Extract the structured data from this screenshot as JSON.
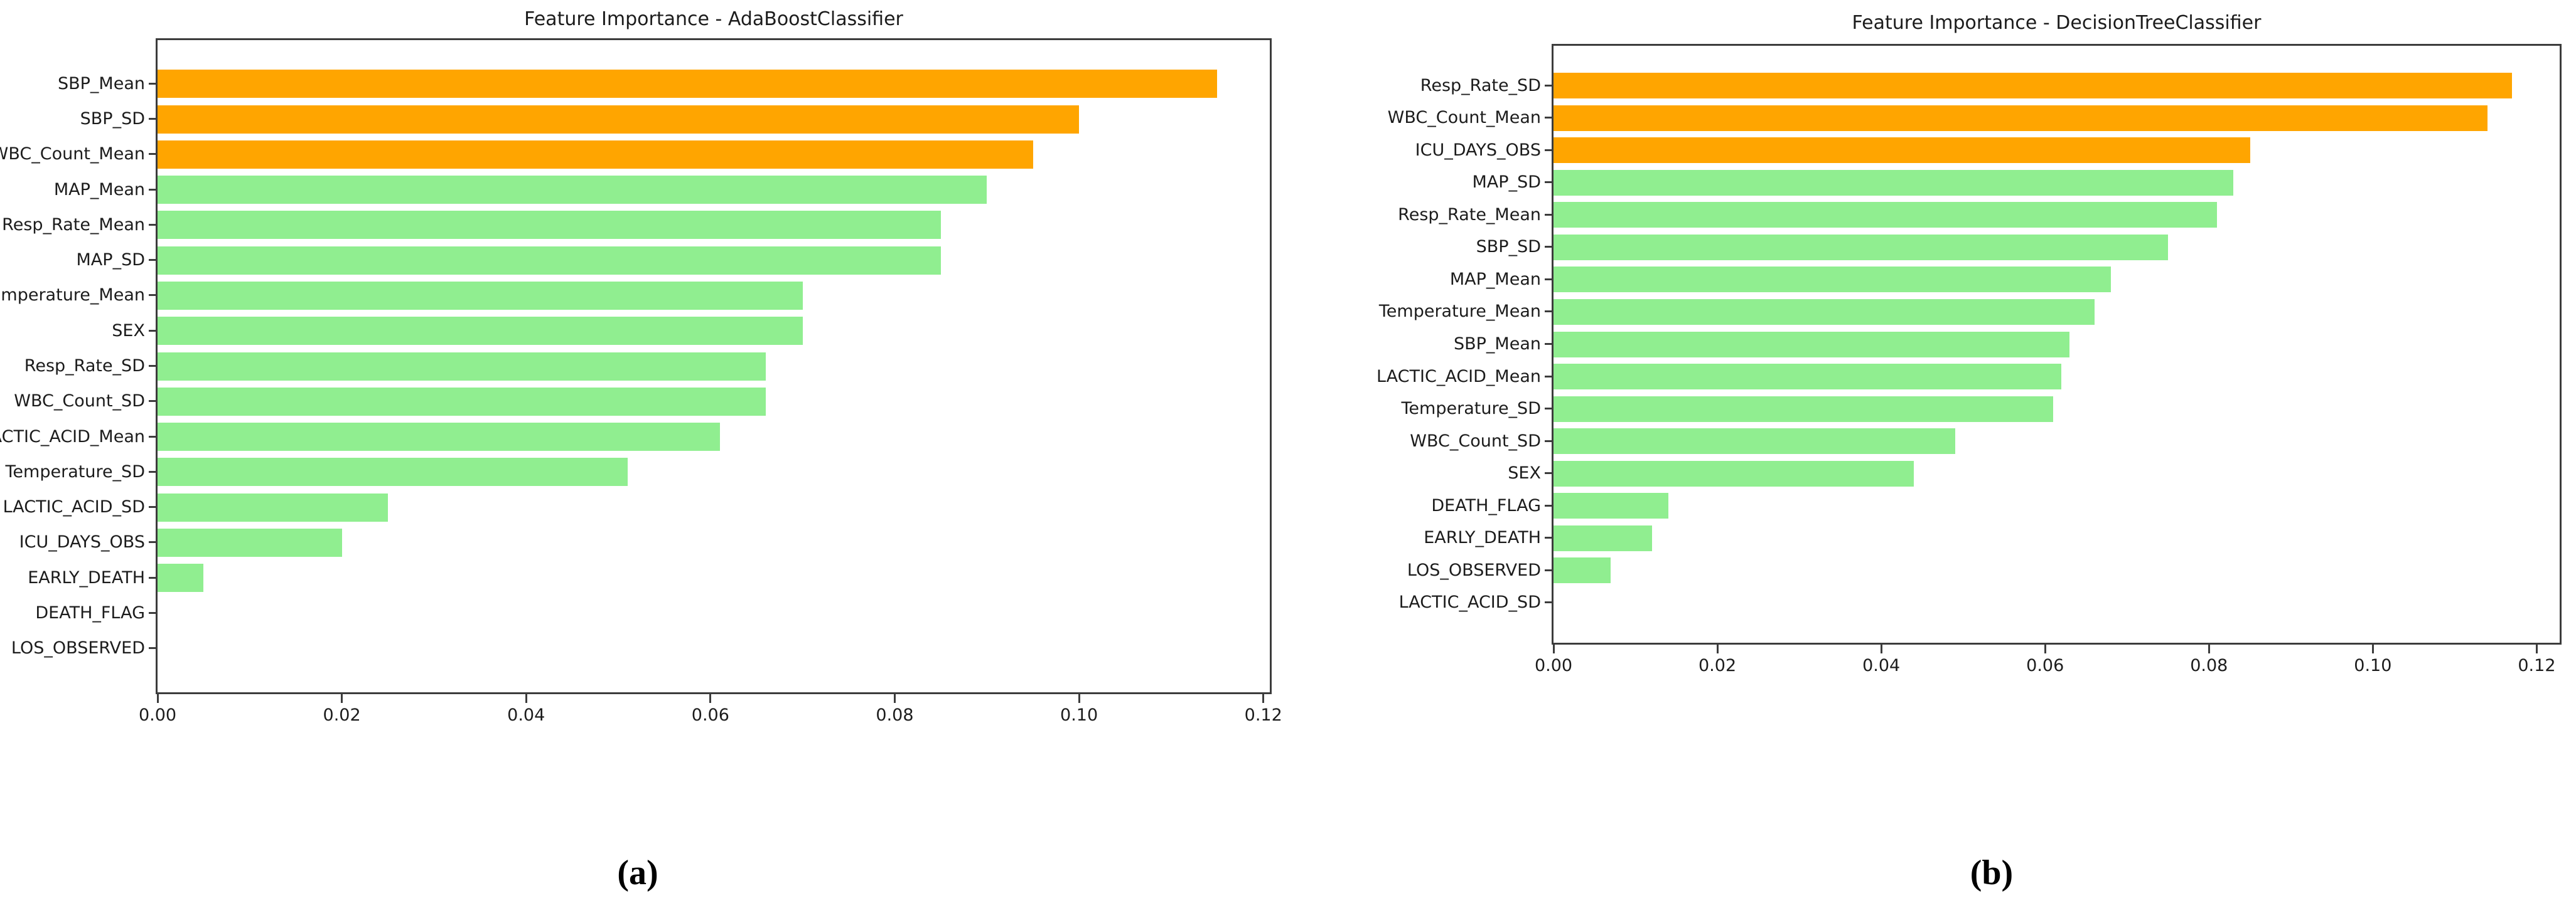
{
  "page": {
    "background": "#ffffff"
  },
  "chart_data": [
    {
      "id": "a",
      "type": "bar",
      "orientation": "horizontal",
      "title": "Feature Importance - AdaBoostClassifier",
      "caption": "(a)",
      "categories": [
        "SBP_Mean",
        "SBP_SD",
        "WBC_Count_Mean",
        "MAP_Mean",
        "Resp_Rate_Mean",
        "MAP_SD",
        "Temperature_Mean",
        "SEX",
        "Resp_Rate_SD",
        "WBC_Count_SD",
        "LACTIC_ACID_Mean",
        "Temperature_SD",
        "LACTIC_ACID_SD",
        "ICU_DAYS_OBS",
        "EARLY_DEATH",
        "DEATH_FLAG",
        "LOS_OBSERVED"
      ],
      "values": [
        0.115,
        0.1,
        0.095,
        0.09,
        0.085,
        0.085,
        0.07,
        0.07,
        0.066,
        0.066,
        0.061,
        0.051,
        0.025,
        0.02,
        0.005,
        0.0,
        0.0
      ],
      "xlabel": "",
      "ylabel": "",
      "xlim": [
        0,
        0.1207
      ],
      "xticks": [
        "0.00",
        "0.02",
        "0.04",
        "0.06",
        "0.08",
        "0.10",
        "0.12"
      ],
      "xtick_values": [
        0,
        0.02,
        0.04,
        0.06,
        0.08,
        0.1,
        0.12
      ],
      "grid": false,
      "legend": "none",
      "sort": "descending",
      "highlight": {
        "top_n": 3,
        "color": "#FFA500"
      },
      "bar_color": "#90EE90"
    },
    {
      "id": "b",
      "type": "bar",
      "orientation": "horizontal",
      "title": "Feature Importance - DecisionTreeClassifier",
      "caption": "(b)",
      "categories": [
        "Resp_Rate_SD",
        "WBC_Count_Mean",
        "ICU_DAYS_OBS",
        "MAP_SD",
        "Resp_Rate_Mean",
        "SBP_SD",
        "MAP_Mean",
        "Temperature_Mean",
        "SBP_Mean",
        "LACTIC_ACID_Mean",
        "Temperature_SD",
        "WBC_Count_SD",
        "SEX",
        "DEATH_FLAG",
        "EARLY_DEATH",
        "LOS_OBSERVED",
        "LACTIC_ACID_SD"
      ],
      "values": [
        0.117,
        0.114,
        0.085,
        0.083,
        0.081,
        0.075,
        0.068,
        0.066,
        0.063,
        0.062,
        0.061,
        0.049,
        0.044,
        0.014,
        0.012,
        0.007,
        0.0
      ],
      "xlabel": "",
      "ylabel": "",
      "xlim": [
        0,
        0.1228
      ],
      "xticks": [
        "0.00",
        "0.02",
        "0.04",
        "0.06",
        "0.08",
        "0.10",
        "0.12"
      ],
      "xtick_values": [
        0,
        0.02,
        0.04,
        0.06,
        0.08,
        0.1,
        0.12
      ],
      "grid": false,
      "legend": "none",
      "sort": "descending",
      "highlight": {
        "top_n": 3,
        "color": "#FFA500"
      },
      "bar_color": "#90EE90"
    }
  ]
}
